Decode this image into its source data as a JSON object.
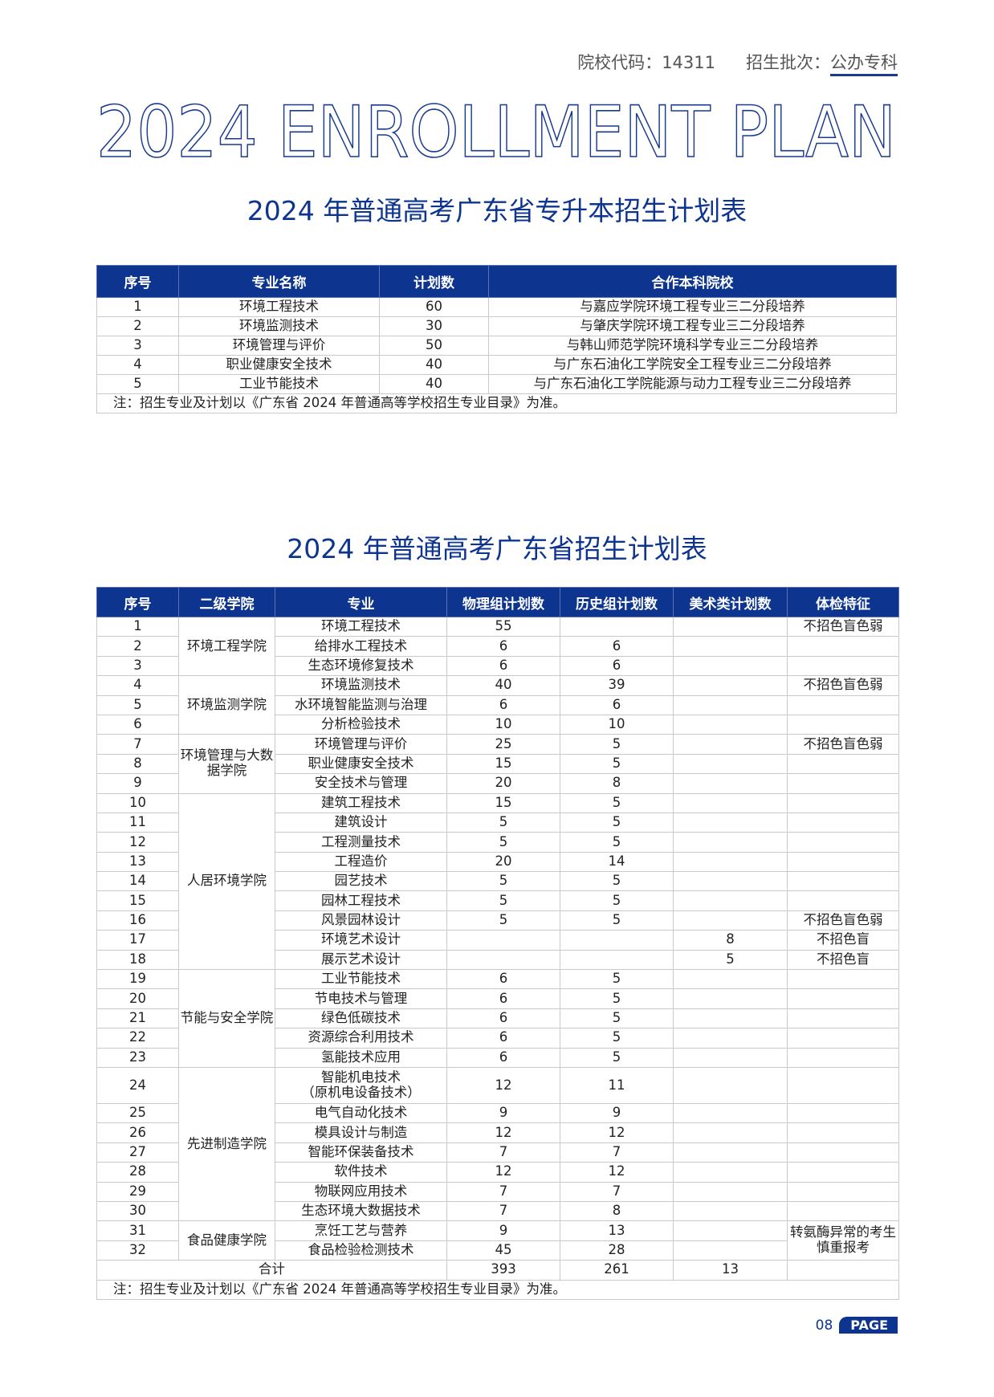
{
  "header": {
    "code_label": "院校代码：",
    "code": "14311",
    "batch_label": "招生批次：",
    "batch": "公办专科"
  },
  "big_title": "2024 ENROLLMENT PLAN",
  "colors": {
    "accent": "#0d3590"
  },
  "table1": {
    "title": "2024 年普通高考广东省专升本招生计划表",
    "headers": [
      "序号",
      "专业名称",
      "计划数",
      "合作本科院校"
    ],
    "rows": [
      [
        "1",
        "环境工程技术",
        "60",
        "与嘉应学院环境工程专业三二分段培养"
      ],
      [
        "2",
        "环境监测技术",
        "30",
        "与肇庆学院环境工程专业三二分段培养"
      ],
      [
        "3",
        "环境管理与评价",
        "50",
        "与韩山师范学院环境科学专业三二分段培养"
      ],
      [
        "4",
        "职业健康安全技术",
        "40",
        "与广东石油化工学院安全工程专业三二分段培养"
      ],
      [
        "5",
        "工业节能技术",
        "40",
        "与广东石油化工学院能源与动力工程专业三二分段培养"
      ]
    ],
    "note": "注：招生专业及计划以《广东省 2024 年普通高等学校招生专业目录》为准。"
  },
  "table2": {
    "title": "2024 年普通高考广东省招生计划表",
    "headers": [
      "序号",
      "二级学院",
      "专业",
      "物理组计划数",
      "历史组计划数",
      "美术类计划数",
      "体检特征"
    ],
    "groups": [
      {
        "college": "环境工程学院",
        "rows": [
          [
            "1",
            "环境工程技术",
            "55",
            "",
            "",
            "不招色盲色弱"
          ],
          [
            "2",
            "给排水工程技术",
            "6",
            "6",
            "",
            ""
          ],
          [
            "3",
            "生态环境修复技术",
            "6",
            "6",
            "",
            ""
          ]
        ]
      },
      {
        "college": "环境监测学院",
        "rows": [
          [
            "4",
            "环境监测技术",
            "40",
            "39",
            "",
            "不招色盲色弱"
          ],
          [
            "5",
            "水环境智能监测与治理",
            "6",
            "6",
            "",
            ""
          ],
          [
            "6",
            "分析检验技术",
            "10",
            "10",
            "",
            ""
          ]
        ]
      },
      {
        "college": "环境管理与大数据学院",
        "rows": [
          [
            "7",
            "环境管理与评价",
            "25",
            "5",
            "",
            "不招色盲色弱"
          ],
          [
            "8",
            "职业健康安全技术",
            "15",
            "5",
            "",
            ""
          ],
          [
            "9",
            "安全技术与管理",
            "20",
            "8",
            "",
            ""
          ]
        ]
      },
      {
        "college": "人居环境学院",
        "rows": [
          [
            "10",
            "建筑工程技术",
            "15",
            "5",
            "",
            ""
          ],
          [
            "11",
            "建筑设计",
            "5",
            "5",
            "",
            ""
          ],
          [
            "12",
            "工程测量技术",
            "5",
            "5",
            "",
            ""
          ],
          [
            "13",
            "工程造价",
            "20",
            "14",
            "",
            ""
          ],
          [
            "14",
            "园艺技术",
            "5",
            "5",
            "",
            ""
          ],
          [
            "15",
            "园林工程技术",
            "5",
            "5",
            "",
            ""
          ],
          [
            "16",
            "风景园林设计",
            "5",
            "5",
            "",
            "不招色盲色弱"
          ],
          [
            "17",
            "环境艺术设计",
            "",
            "",
            "8",
            "不招色盲"
          ],
          [
            "18",
            "展示艺术设计",
            "",
            "",
            "5",
            "不招色盲"
          ]
        ]
      },
      {
        "college": "节能与安全学院",
        "rows": [
          [
            "19",
            "工业节能技术",
            "6",
            "5",
            "",
            ""
          ],
          [
            "20",
            "节电技术与管理",
            "6",
            "5",
            "",
            ""
          ],
          [
            "21",
            "绿色低碳技术",
            "6",
            "5",
            "",
            ""
          ],
          [
            "22",
            "资源综合利用技术",
            "6",
            "5",
            "",
            ""
          ],
          [
            "23",
            "氢能技术应用",
            "6",
            "5",
            "",
            ""
          ]
        ]
      },
      {
        "college": "先进制造学院",
        "rows": [
          [
            "24",
            "智能机电技术\n（原机电设备技术）",
            "12",
            "11",
            "",
            ""
          ],
          [
            "25",
            "电气自动化技术",
            "9",
            "9",
            "",
            ""
          ],
          [
            "26",
            "模具设计与制造",
            "12",
            "12",
            "",
            ""
          ],
          [
            "27",
            "智能环保装备技术",
            "7",
            "7",
            "",
            ""
          ],
          [
            "28",
            "软件技术",
            "12",
            "12",
            "",
            ""
          ],
          [
            "29",
            "物联网应用技术",
            "7",
            "7",
            "",
            ""
          ],
          [
            "30",
            "生态环境大数据技术",
            "7",
            "8",
            "",
            ""
          ]
        ]
      },
      {
        "college": "食品健康学院",
        "merged_exam": "转氨酶异常的考生慎重报考",
        "rows": [
          [
            "31",
            "烹饪工艺与营养",
            "9",
            "13",
            ""
          ],
          [
            "32",
            "食品检验检测技术",
            "45",
            "28",
            ""
          ]
        ]
      }
    ],
    "total": {
      "label": "合计",
      "physics": "393",
      "history": "261",
      "art": "13"
    },
    "note": "注：招生专业及计划以《广东省 2024 年普通高等学校招生专业目录》为准。"
  },
  "footer": {
    "page": "08",
    "badge": "PAGE"
  }
}
